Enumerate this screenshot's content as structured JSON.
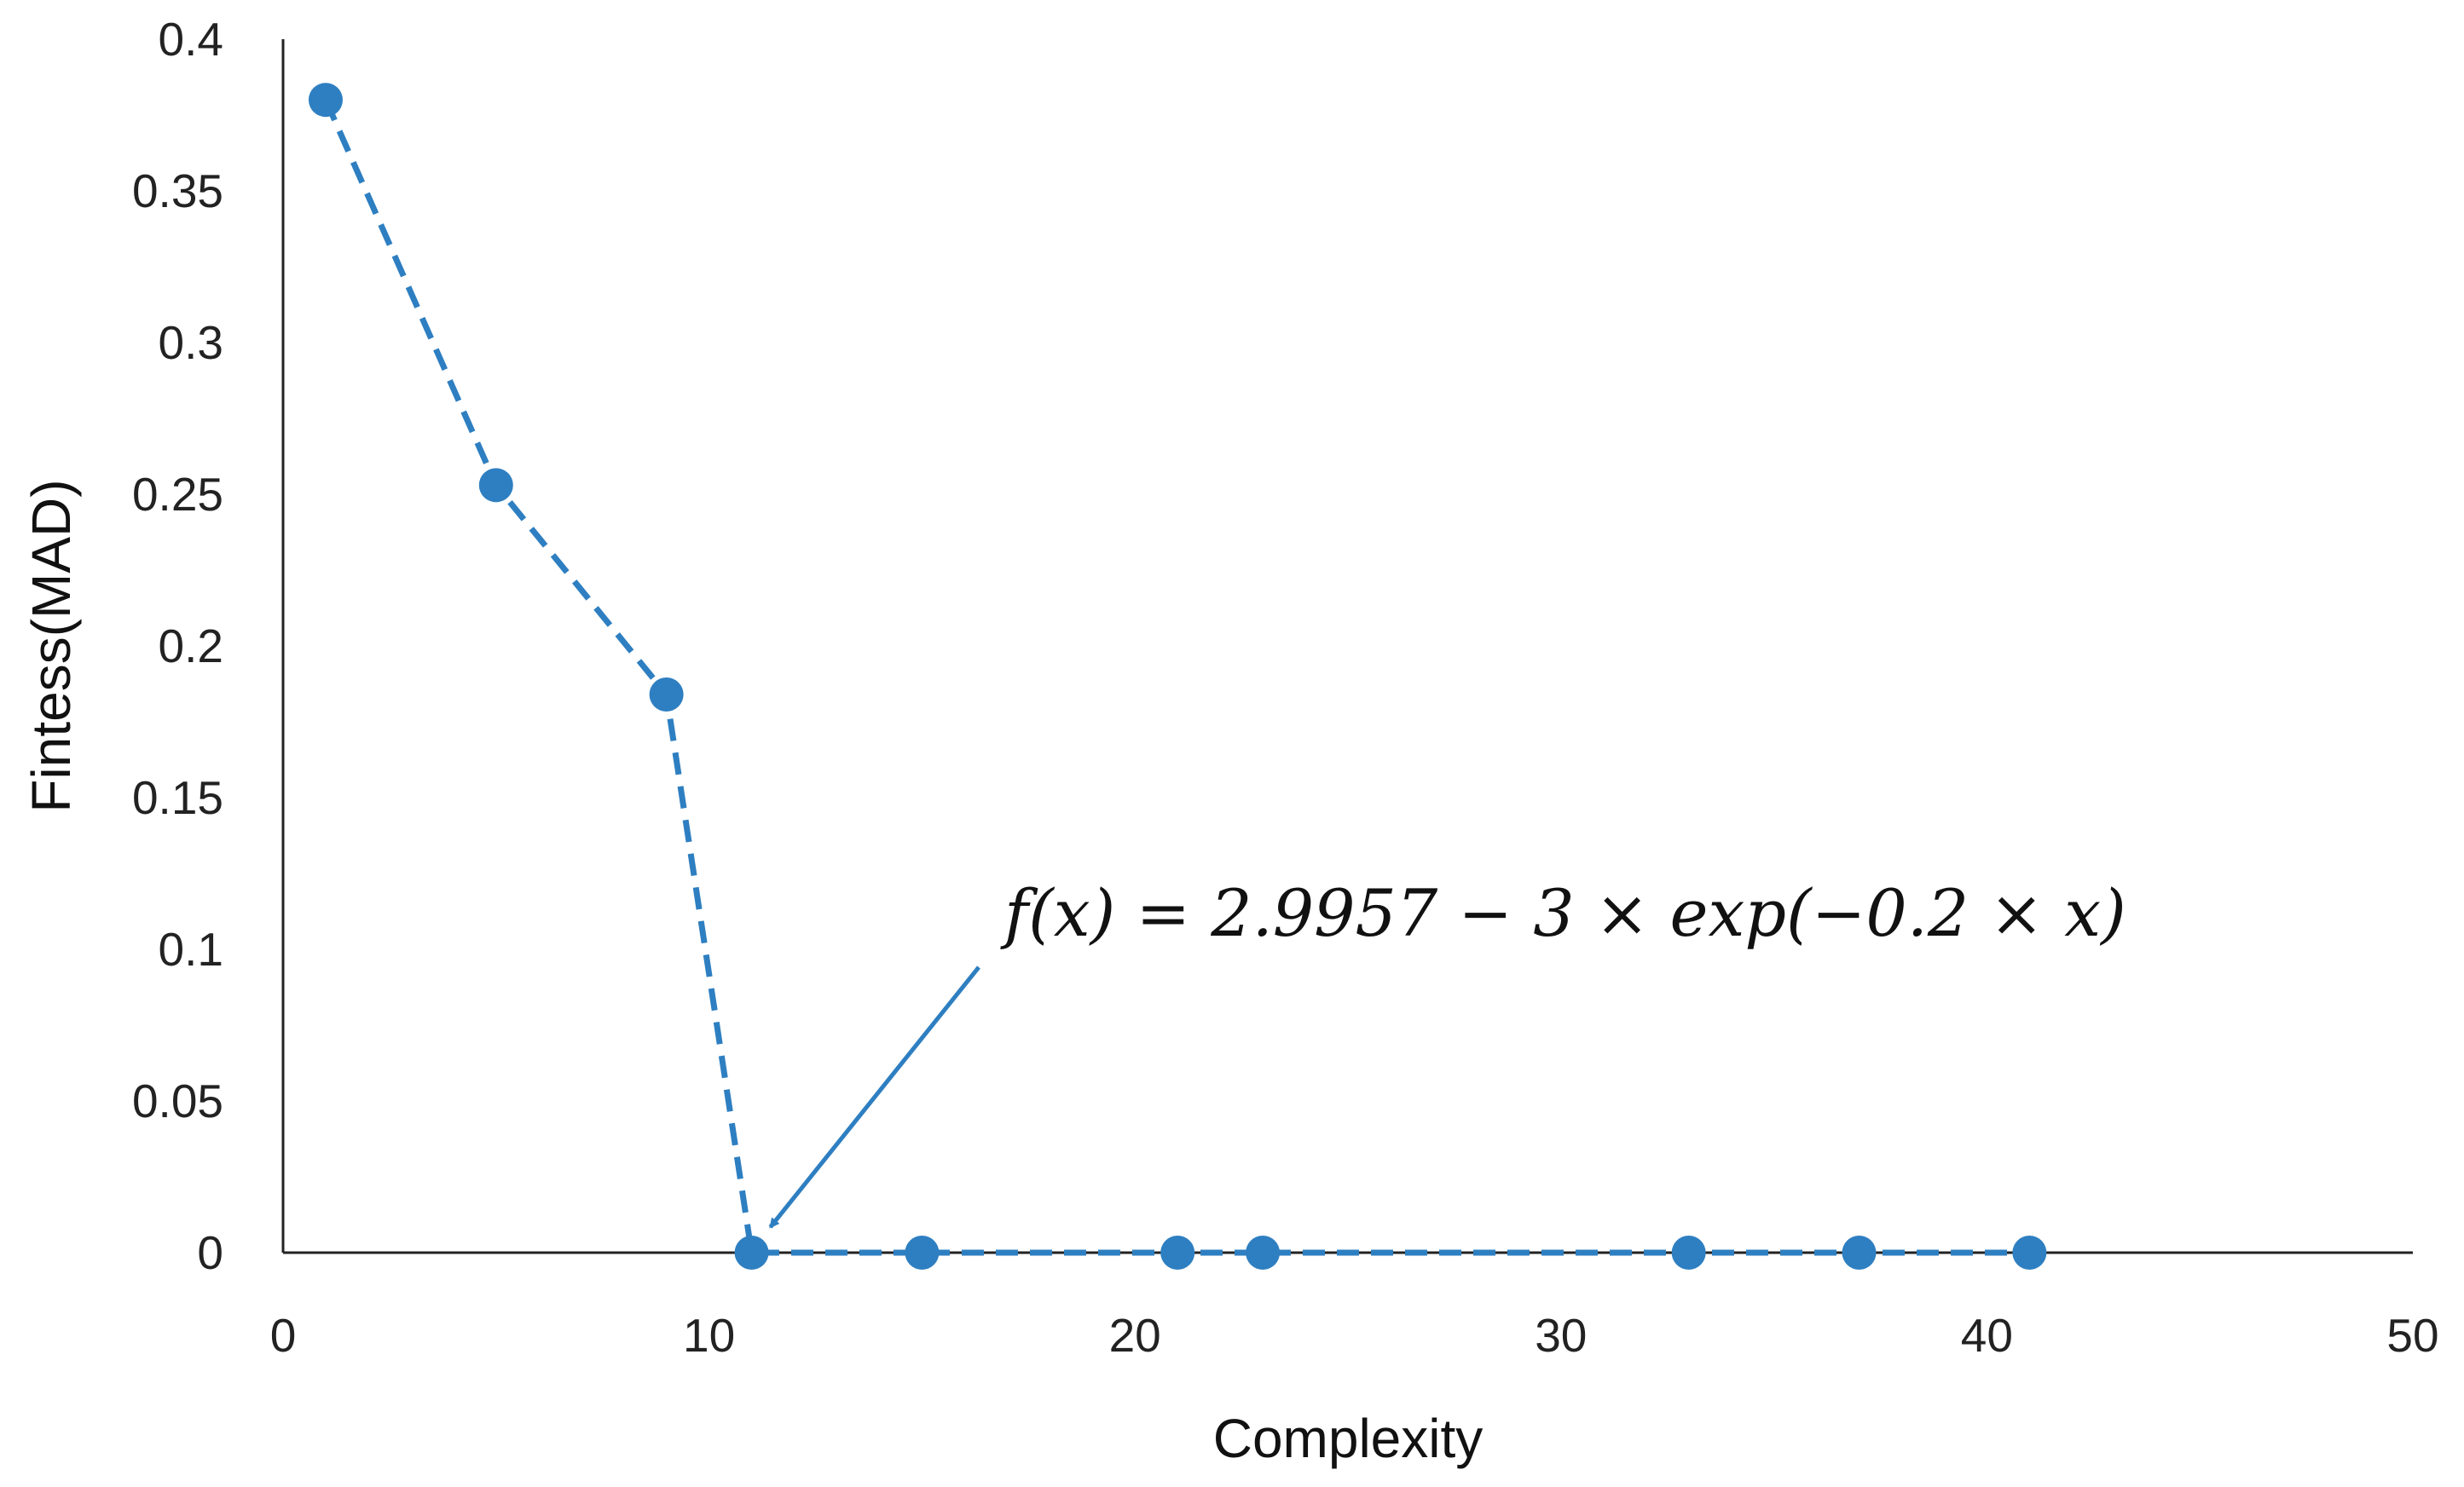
{
  "chart_data": {
    "type": "line",
    "xlabel": "Complexity",
    "ylabel": "Fintess(MAD)",
    "xlim": [
      0,
      50
    ],
    "ylim": [
      0,
      0.4
    ],
    "xticks": [
      0,
      10,
      20,
      30,
      40,
      50
    ],
    "xtick_labels": [
      "0",
      "10",
      "20",
      "30",
      "40",
      "50"
    ],
    "yticks": [
      0,
      0.05,
      0.1,
      0.15,
      0.2,
      0.25,
      0.3,
      0.35,
      0.4
    ],
    "ytick_labels": [
      "0",
      "0.05",
      "0.1",
      "0.15",
      "0.2",
      "0.25",
      "0.3",
      "0.35",
      "0.4"
    ],
    "grid": false,
    "legend": "none",
    "line_style": "dashed",
    "marker": "circle",
    "color": "#2E7FC1",
    "series": [
      {
        "x": [
          1,
          5,
          9,
          11,
          15,
          21,
          23,
          33,
          37,
          41
        ],
        "y": [
          0.38,
          0.253,
          0.184,
          0,
          0,
          0,
          0,
          0,
          0,
          0
        ]
      }
    ],
    "annotations": [
      {
        "text": "f(x) = 2.9957 − 3 × exp(−0.2 × x)",
        "points_to": {
          "x": 11,
          "y": 0
        }
      }
    ]
  }
}
